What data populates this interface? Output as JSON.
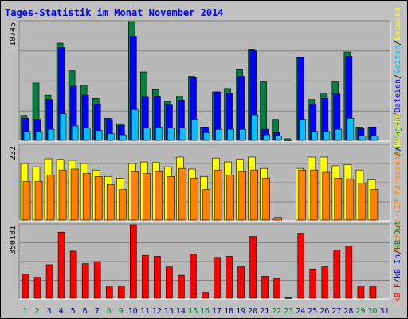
{
  "colors": {
    "background": "#c0c0c0",
    "panel": "#b8b8b8",
    "title": "#0000ff",
    "hits": "#008040",
    "files": "#0000ff",
    "pages": "#00c0ff",
    "visits": "#ffff00",
    "sites": "#ff8000",
    "kb_in": "#0000ff",
    "kb_out": "#008040",
    "kb_f": "#ff0000",
    "weekend_label": "#008040",
    "weekday_label": "#000080"
  },
  "chart_data": [
    {
      "type": "bar",
      "title": "Tages-Statistik im Monat November 2014",
      "y_max_label": "10745",
      "y_max": 10745,
      "right_label_parts": [
        "Anfragen",
        "/",
        "Dateien",
        "/",
        "Seiten",
        "/",
        "Besuche"
      ],
      "categories": [
        "1",
        "2",
        "3",
        "4",
        "5",
        "6",
        "7",
        "8",
        "9",
        "10",
        "11",
        "12",
        "13",
        "14",
        "15",
        "16",
        "17",
        "18",
        "19",
        "20",
        "21",
        "22",
        "23",
        "24",
        "25",
        "26",
        "27",
        "28",
        "29",
        "30",
        "31"
      ],
      "weekend_days": [
        "1",
        "2",
        "8",
        "9",
        "15",
        "16",
        "22",
        "23",
        "29",
        "30"
      ],
      "series": [
        {
          "name": "Anfragen",
          "values": [
            2250,
            5200,
            4100,
            8800,
            6300,
            5000,
            3800,
            2000,
            1500,
            10745,
            6200,
            4600,
            3500,
            4000,
            5800,
            1200,
            4400,
            4700,
            6400,
            8200,
            5300,
            1900,
            150,
            7500,
            3700,
            4300,
            5300,
            8000,
            1200,
            1200,
            0
          ]
        },
        {
          "name": "Dateien",
          "values": [
            2000,
            1900,
            3700,
            8400,
            4900,
            4100,
            3300,
            1900,
            1350,
            9400,
            3900,
            4000,
            3200,
            3600,
            5700,
            1200,
            4400,
            4300,
            5800,
            8100,
            1000,
            700,
            0,
            7500,
            3300,
            3800,
            4200,
            7600,
            1100,
            1200,
            0
          ]
        },
        {
          "name": "Seiten",
          "values": [
            800,
            800,
            1000,
            2400,
            1300,
            1100,
            900,
            600,
            500,
            2800,
            1100,
            1200,
            1100,
            1100,
            1900,
            700,
            1000,
            1000,
            1000,
            2300,
            500,
            400,
            0,
            1900,
            800,
            800,
            1000,
            2000,
            400,
            400,
            0
          ]
        }
      ]
    },
    {
      "type": "bar",
      "y_max_label": "232",
      "y_max": 232,
      "right_label_parts": [
        "Rechner (IP-Adressen)",
        "/",
        "Besuche"
      ],
      "series": [
        {
          "name": "Besuche",
          "values": [
            175,
            165,
            190,
            188,
            185,
            175,
            155,
            135,
            130,
            175,
            180,
            178,
            165,
            195,
            158,
            135,
            192,
            180,
            188,
            195,
            160,
            5,
            0,
            160,
            195,
            195,
            168,
            172,
            155,
            125,
            0
          ]
        },
        {
          "name": "Rechner (IP-Adressen)",
          "values": [
            120,
            120,
            140,
            155,
            158,
            145,
            135,
            110,
            95,
            150,
            145,
            150,
            135,
            160,
            130,
            95,
            155,
            140,
            150,
            155,
            130,
            8,
            0,
            155,
            155,
            148,
            130,
            128,
            115,
            95,
            0
          ]
        }
      ]
    },
    {
      "type": "bar",
      "y_max_label": "350181",
      "y_max": 350181,
      "right_label_parts": [
        "kB F",
        "/",
        "kB In",
        "/",
        "kB Out"
      ],
      "series": [
        {
          "name": "kB F",
          "values": [
            115000,
            100000,
            160000,
            315000,
            225000,
            165000,
            175000,
            58000,
            58000,
            350181,
            205000,
            200000,
            150000,
            110000,
            210000,
            28000,
            195000,
            200000,
            150000,
            295000,
            105000,
            95000,
            0,
            310000,
            140000,
            150000,
            230000,
            250000,
            58000,
            58000,
            0
          ]
        }
      ]
    }
  ]
}
